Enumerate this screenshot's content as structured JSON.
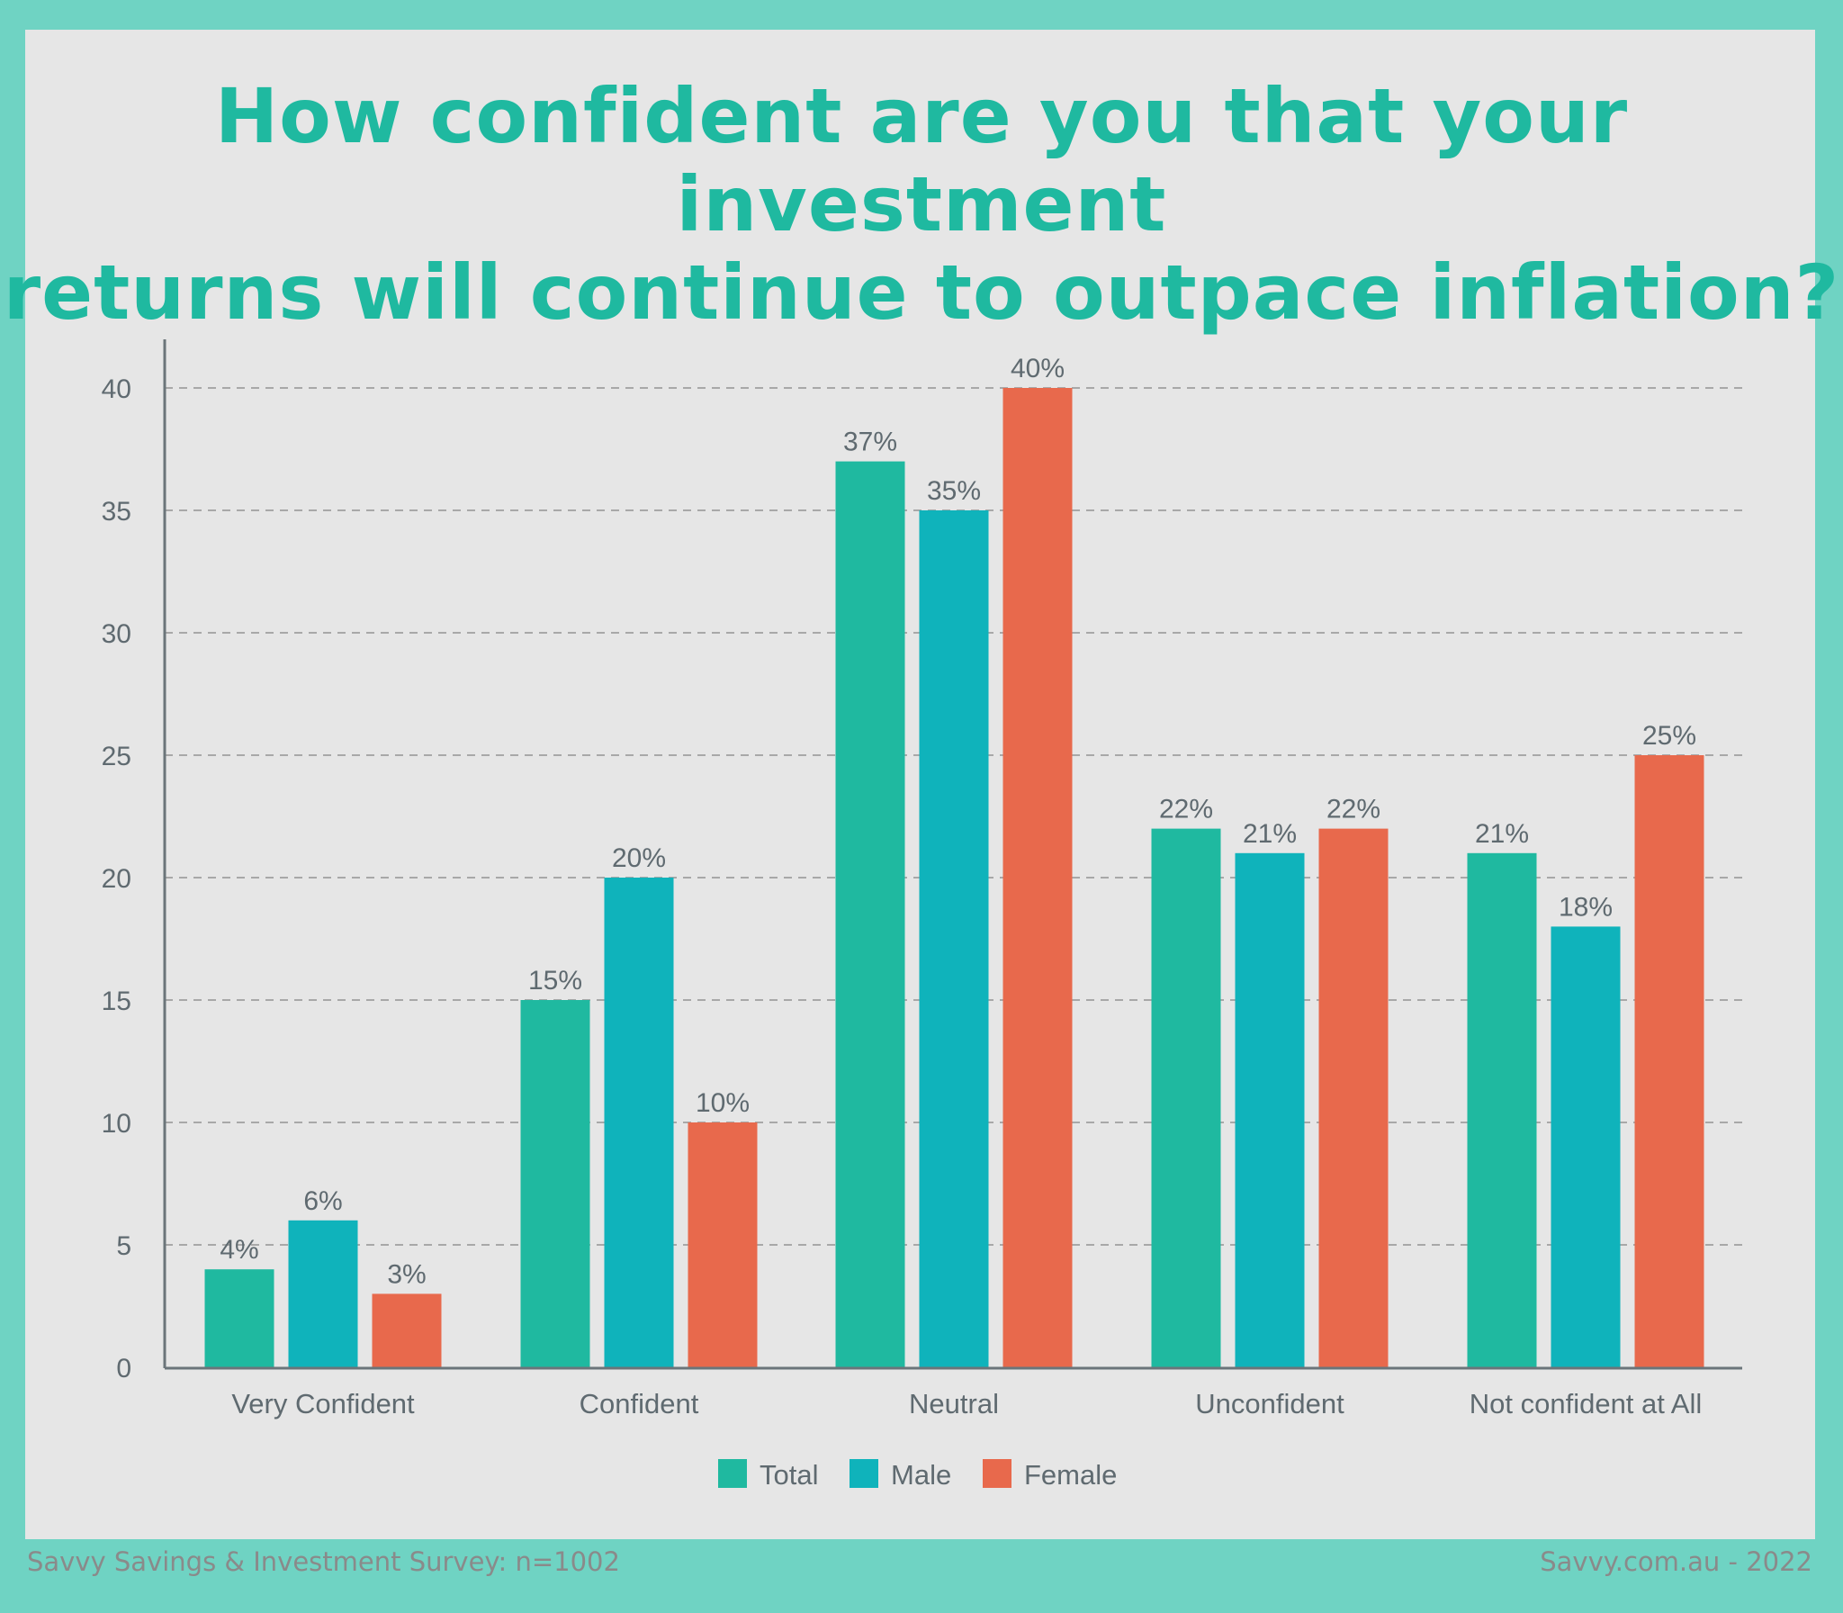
{
  "title_lines": [
    "How confident are you that your investment",
    "returns will continue to outpace inflation?"
  ],
  "footer": {
    "left": "Savvy Savings & Investment Survey: n=1002",
    "right": "Savvy.com.au - 2022"
  },
  "chart_data": {
    "type": "bar",
    "title": "How confident are you that your investment returns will continue to outpace inflation?",
    "categories": [
      "Very Confident",
      "Confident",
      "Neutral",
      "Unconfident",
      "Not confident at All"
    ],
    "series": [
      {
        "name": "Total",
        "color": "#1fb9a0",
        "values": [
          4,
          15,
          37,
          22,
          21
        ],
        "labels": [
          "4%",
          "15%",
          "37%",
          "22%",
          "21%"
        ]
      },
      {
        "name": "Male",
        "color": "#0fb3bb",
        "values": [
          6,
          20,
          35,
          21,
          18
        ],
        "labels": [
          "6%",
          "20%",
          "35%",
          "21%",
          "18%"
        ]
      },
      {
        "name": "Female",
        "color": "#e8694c",
        "values": [
          3,
          10,
          40,
          22,
          25
        ],
        "labels": [
          "3%",
          "10%",
          "40%",
          "22%",
          "25%"
        ]
      }
    ],
    "yticks": [
      "0",
      "5",
      "10",
      "15",
      "20",
      "25",
      "30",
      "35",
      "40"
    ],
    "ylim": [
      0,
      42
    ],
    "xlabel": "",
    "ylabel": "",
    "grid": true,
    "legend": "bottom-center"
  }
}
